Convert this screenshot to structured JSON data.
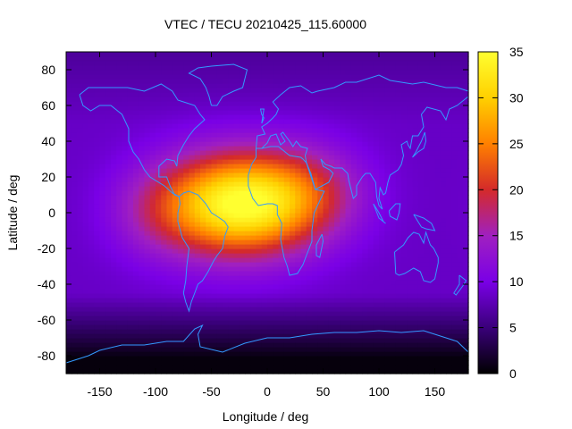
{
  "chart_data": {
    "type": "heatmap",
    "title": "VTEC / TECU 20210425_115.60000",
    "xlabel": "Longitude / deg",
    "ylabel": "Latitude / deg",
    "xlim": [
      -180,
      180
    ],
    "ylim": [
      -90,
      90
    ],
    "xticks": [
      -150,
      -100,
      -50,
      0,
      50,
      100,
      150
    ],
    "yticks": [
      -80,
      -60,
      -40,
      -20,
      0,
      20,
      40,
      60,
      80
    ],
    "colorbar": {
      "range": [
        0,
        35
      ],
      "ticks": [
        0,
        5,
        10,
        15,
        20,
        25,
        30,
        35
      ],
      "colormap": [
        "#000000",
        "#3a007a",
        "#7a00e6",
        "#a020c0",
        "#d42a2a",
        "#ff8000",
        "#ffd000",
        "#ffff30"
      ]
    },
    "grid": {
      "lon_step": 5,
      "lat_step": 2.5
    },
    "field_features": [
      {
        "lon": -25,
        "lat": 5,
        "peak_tecu": 35,
        "sigma_lon": 48,
        "sigma_lat": 20
      },
      {
        "lon": 40,
        "lat": 12,
        "peak_tecu": 6,
        "sigma_lon": 35,
        "sigma_lat": 18
      },
      {
        "lon": -100,
        "lat": 0,
        "peak_tecu": 4,
        "sigma_lon": 30,
        "sigma_lat": 18
      }
    ],
    "background_tecu": 8.5,
    "coastline_color": "#3399ff"
  }
}
